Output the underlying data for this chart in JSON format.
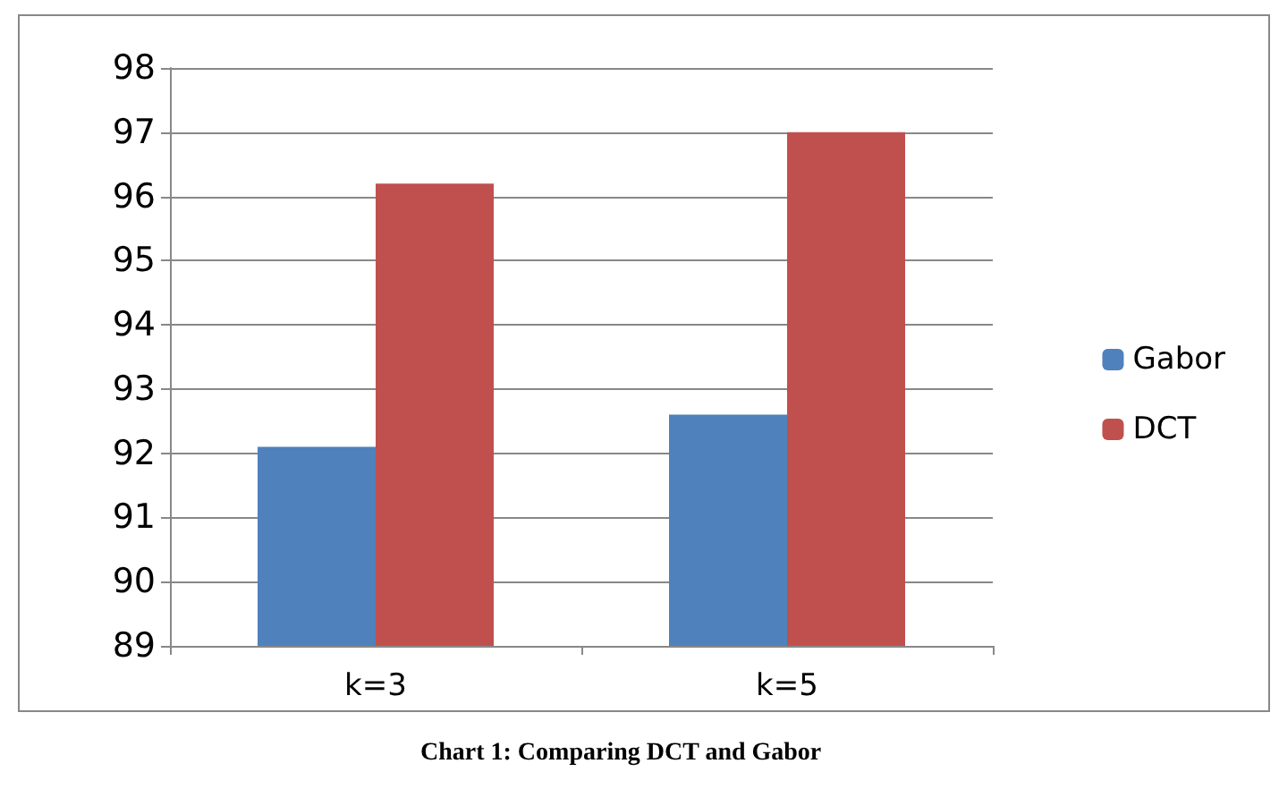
{
  "chart_data": {
    "type": "bar",
    "title": "Chart 1: Comparing DCT and Gabor",
    "categories": [
      "k=3",
      "k=5"
    ],
    "series": [
      {
        "name": "Gabor",
        "color": "#4f81bd",
        "values": [
          92.1,
          92.6
        ]
      },
      {
        "name": "DCT",
        "color": "#c0504d",
        "values": [
          96.2,
          97.0
        ]
      }
    ],
    "ylim": [
      89,
      98
    ],
    "yticks": [
      89,
      90,
      91,
      92,
      93,
      94,
      95,
      96,
      97,
      98
    ],
    "grid": "y",
    "legend": "right"
  }
}
